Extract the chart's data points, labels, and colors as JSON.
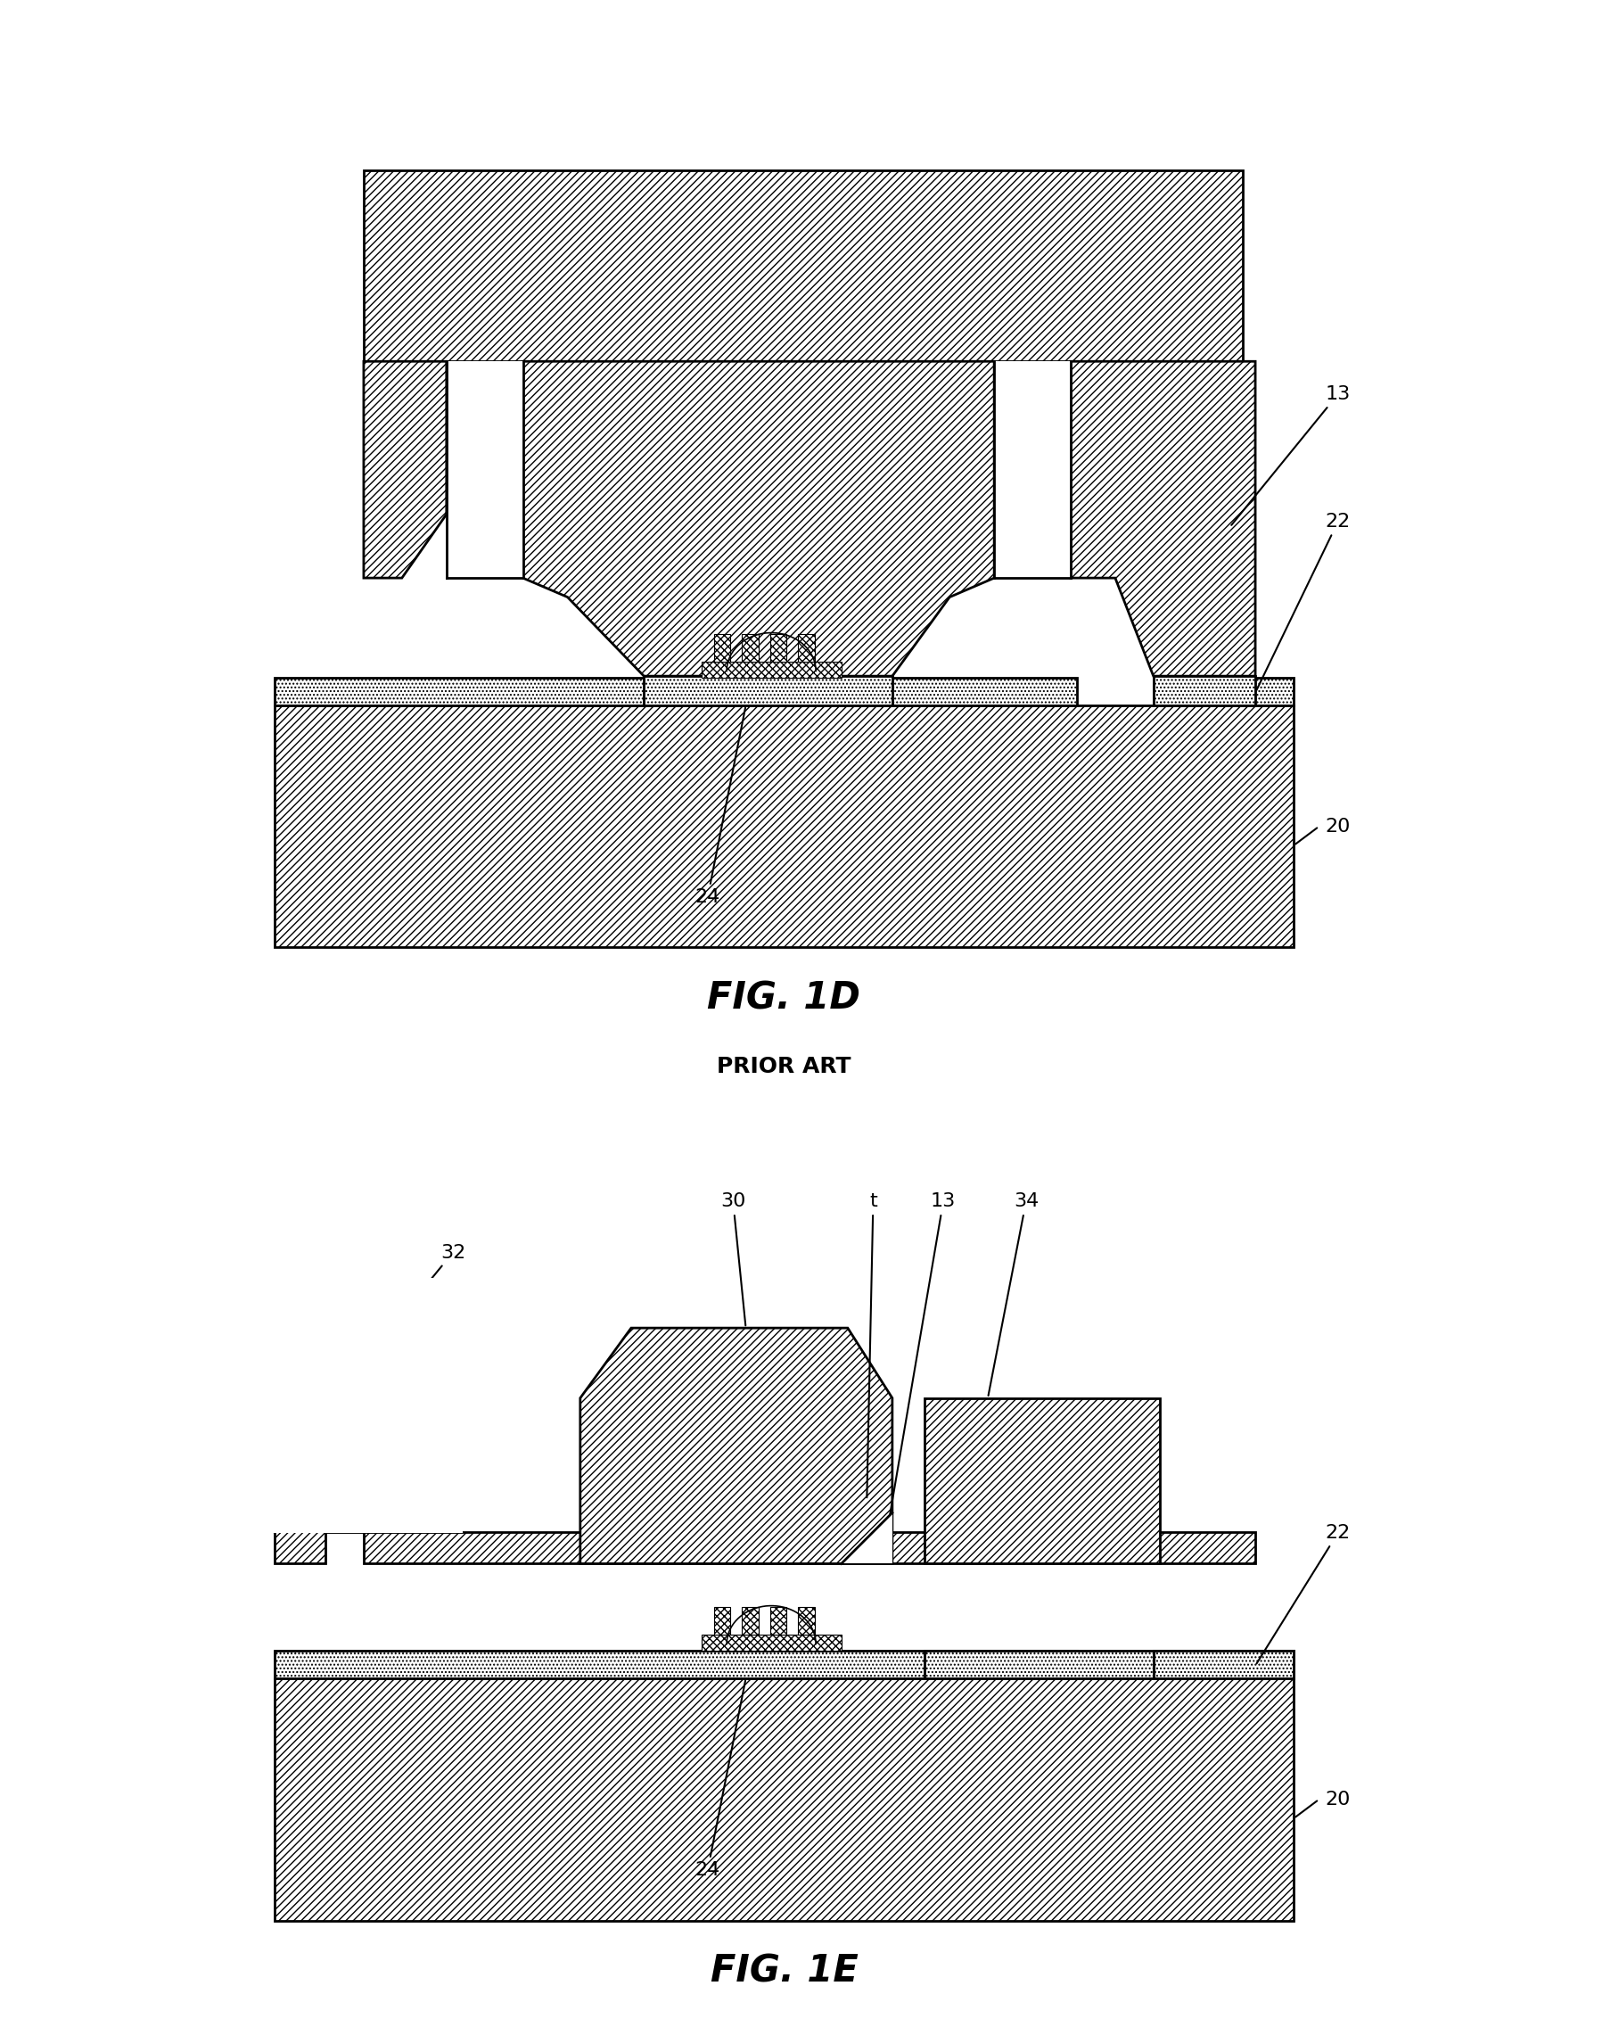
{
  "fig_width": 18.16,
  "fig_height": 22.73,
  "bg_color": "#ffffff",
  "lc": "#000000",
  "lw": 2.0,
  "title1": "FIG. 1D",
  "title2": "FIG. 1E",
  "subtitle": "PRIOR ART",
  "label_fs": 16,
  "title_fs": 30
}
